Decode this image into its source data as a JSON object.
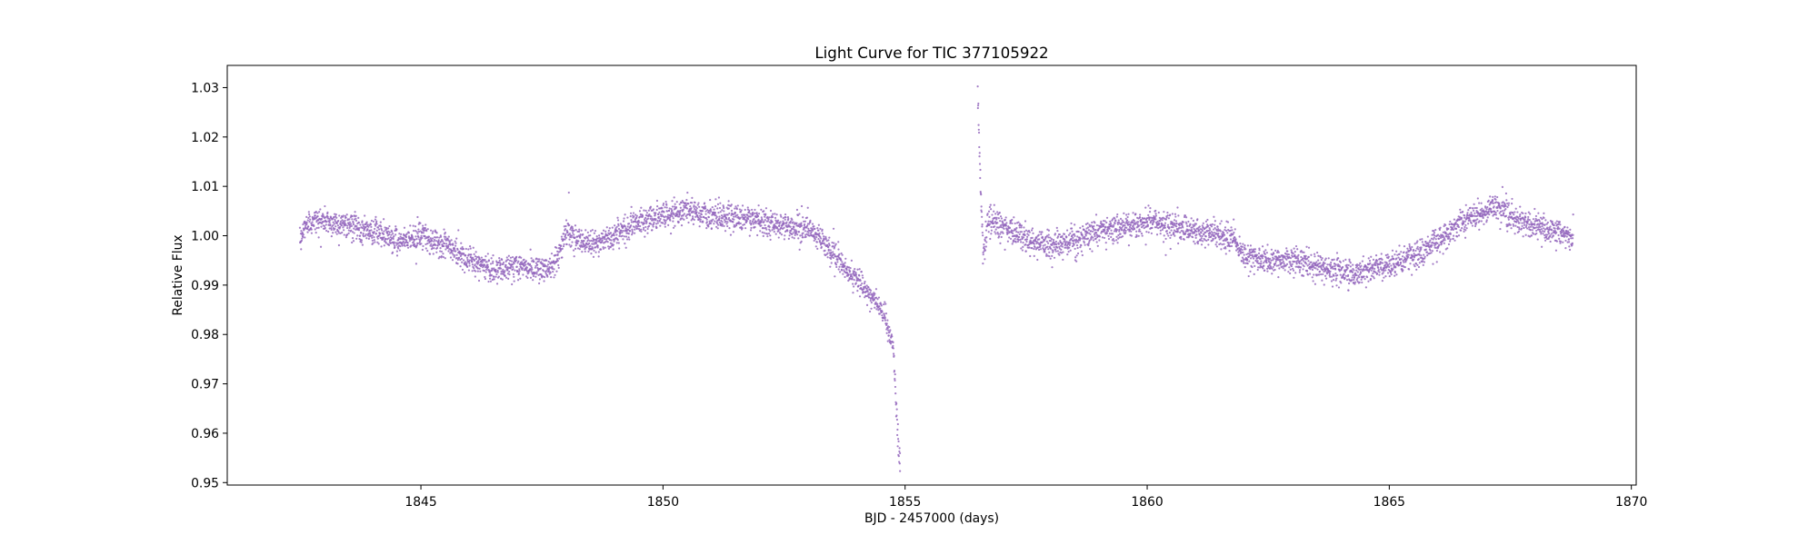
{
  "chart_data": {
    "type": "scatter",
    "title": "Light Curve for TIC 377105922",
    "xlabel": "BJD - 2457000 (days)",
    "ylabel": "Relative Flux",
    "xlim": [
      1841.0,
      1870.1
    ],
    "ylim": [
      0.9495,
      1.0345
    ],
    "xticks": [
      1845,
      1850,
      1855,
      1860,
      1865,
      1870
    ],
    "xtick_labels": [
      "1845",
      "1850",
      "1855",
      "1860",
      "1865",
      "1870"
    ],
    "yticks": [
      0.95,
      0.96,
      0.97,
      0.98,
      0.99,
      1.0,
      1.01,
      1.02,
      1.03
    ],
    "ytick_labels": [
      "0.95",
      "0.96",
      "0.97",
      "0.98",
      "0.99",
      "1.00",
      "1.01",
      "1.02",
      "1.03"
    ],
    "grid": false,
    "point_color": "#9467bd",
    "series": [
      {
        "segments": [
          {
            "x": [
              1842.5,
              1842.6,
              1842.7,
              1843.0,
              1843.5,
              1844.0,
              1844.5,
              1845.0,
              1845.5,
              1846.0,
              1846.5,
              1847.0,
              1847.5,
              1847.8,
              1848.0,
              1848.5,
              1849.0,
              1849.5,
              1850.0,
              1850.5,
              1851.0,
              1851.5,
              1852.0,
              1852.5,
              1853.0,
              1853.3,
              1853.6,
              1854.0,
              1854.3,
              1854.6,
              1854.75,
              1854.82,
              1854.86,
              1854.9
            ],
            "y": [
              0.998,
              1.002,
              1.003,
              1.003,
              1.002,
              1.001,
              0.999,
              1.0,
              0.998,
              0.995,
              0.993,
              0.994,
              0.993,
              0.995,
              1.001,
              0.998,
              1.0,
              1.003,
              1.004,
              1.005,
              1.004,
              1.004,
              1.003,
              1.002,
              1.001,
              0.999,
              0.995,
              0.991,
              0.988,
              0.983,
              0.978,
              0.965,
              0.957,
              0.955
            ]
          },
          {
            "x": [
              1856.5,
              1856.52,
              1856.55,
              1856.58,
              1856.62,
              1856.7,
              1857.0,
              1857.5,
              1858.0,
              1858.5,
              1859.0,
              1859.5,
              1860.0,
              1860.5,
              1861.0,
              1861.5,
              1861.8,
              1862.0,
              1862.5,
              1863.0,
              1863.5,
              1864.0,
              1864.3,
              1864.5,
              1865.0,
              1865.5,
              1866.0,
              1866.5,
              1867.0,
              1867.3,
              1867.6,
              1868.0,
              1868.5,
              1868.8
            ],
            "y": [
              1.029,
              1.022,
              1.012,
              1.004,
              0.996,
              1.003,
              1.002,
              0.999,
              0.998,
              0.999,
              1.001,
              1.002,
              1.003,
              1.002,
              1.001,
              1.0,
              0.999,
              0.996,
              0.995,
              0.995,
              0.994,
              0.993,
              0.992,
              0.993,
              0.994,
              0.996,
              0.999,
              1.003,
              1.005,
              1.006,
              1.003,
              1.002,
              1.001,
              0.999
            ]
          }
        ]
      }
    ]
  }
}
